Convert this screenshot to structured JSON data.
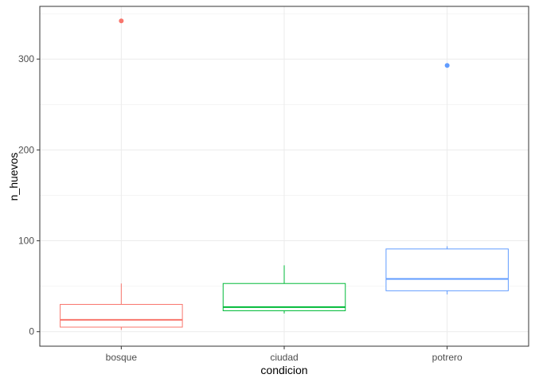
{
  "chart_data": {
    "type": "boxplot",
    "xlabel": "condicion",
    "ylabel": "n_huevos",
    "categories": [
      "bosque",
      "ciudad",
      "potrero"
    ],
    "ylim": [
      -16,
      358
    ],
    "y_ticks": [
      0,
      100,
      200,
      300
    ],
    "grid": true,
    "legend": "none",
    "boxes": [
      {
        "name": "bosque",
        "color": "#F8766D",
        "whisker_low": 2,
        "q1": 5,
        "median": 13,
        "q3": 30,
        "whisker_high": 53,
        "outliers": [
          342
        ]
      },
      {
        "name": "ciudad",
        "color": "#00BA38",
        "whisker_low": 20,
        "q1": 23,
        "median": 27,
        "q3": 53,
        "whisker_high": 73,
        "outliers": []
      },
      {
        "name": "potrero",
        "color": "#619CFF",
        "whisker_low": 41,
        "q1": 45,
        "median": 58,
        "q3": 91,
        "whisker_high": 94,
        "outliers": [
          293
        ]
      }
    ]
  }
}
